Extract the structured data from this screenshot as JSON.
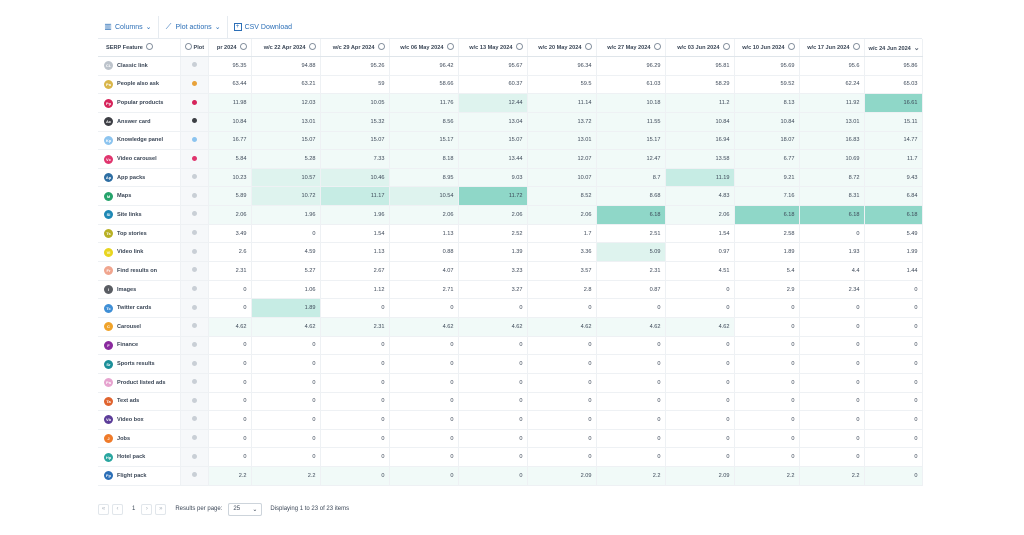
{
  "toolbar": {
    "columns_label": "Columns",
    "plot_actions_label": "Plot actions",
    "csv_label": "CSV Download"
  },
  "table": {
    "feature_header": "SERP Feature",
    "plot_header": "Plot",
    "date_headers": [
      "pr 2024",
      "w/c 22 Apr 2024",
      "w/c 29 Apr 2024",
      "w/c 06 May 2024",
      "w/c 13 May 2024",
      "w/c 20 May 2024",
      "w/c 27 May 2024",
      "w/c 03 Jun 2024",
      "w/c 10 Jun 2024",
      "w/c 17 Jun 2024",
      "w/c 24 Jun 2024"
    ],
    "rows": [
      {
        "name": "Classic link",
        "badge": "CL",
        "badge_color": "#bcc3cb",
        "dot_color": "#c9cfd6",
        "values": [
          "95.35",
          "94.88",
          "95.26",
          "96.42",
          "95.67",
          "96.34",
          "96.29",
          "95.81",
          "95.69",
          "95.6",
          "95.86"
        ],
        "heat": [
          0,
          0,
          0,
          0,
          0,
          0,
          0,
          0,
          0,
          0,
          0
        ]
      },
      {
        "name": "People also ask",
        "badge": "Pa",
        "badge_color": "#d9b64a",
        "dot_color": "#e8a23a",
        "values": [
          "63.44",
          "63.21",
          "59",
          "58.66",
          "60.37",
          "59.5",
          "61.03",
          "58.29",
          "59.52",
          "62.24",
          "65.03"
        ],
        "heat": [
          0,
          0,
          0,
          0,
          0,
          0,
          0,
          0,
          0,
          0,
          0
        ]
      },
      {
        "name": "Popular products",
        "badge": "Pp",
        "badge_color": "#d6245b",
        "dot_color": "#d6245b",
        "values": [
          "11.98",
          "12.03",
          "10.05",
          "11.76",
          "12.44",
          "11.14",
          "10.18",
          "11.2",
          "8.13",
          "11.92",
          "16.61"
        ],
        "heat": [
          1,
          1,
          1,
          1,
          2,
          1,
          1,
          1,
          1,
          1,
          4
        ]
      },
      {
        "name": "Answer card",
        "badge": "Ac",
        "badge_color": "#3d3f45",
        "dot_color": "#3d3f45",
        "values": [
          "10.84",
          "13.01",
          "15.32",
          "8.56",
          "13.04",
          "13.72",
          "11.55",
          "10.84",
          "10.84",
          "13.01",
          "15.11"
        ],
        "heat": [
          1,
          1,
          1,
          1,
          1,
          1,
          1,
          1,
          1,
          1,
          1
        ]
      },
      {
        "name": "Knowledge panel",
        "badge": "Kp",
        "badge_color": "#8cc4ef",
        "dot_color": "#8cc4ef",
        "values": [
          "16.77",
          "15.07",
          "15.07",
          "15.17",
          "15.07",
          "13.01",
          "15.17",
          "16.94",
          "18.07",
          "16.83",
          "14.77"
        ],
        "heat": [
          1,
          1,
          1,
          1,
          1,
          1,
          1,
          1,
          1,
          1,
          1
        ]
      },
      {
        "name": "Video carousel",
        "badge": "Vc",
        "badge_color": "#e0356e",
        "dot_color": "#e0356e",
        "values": [
          "5.84",
          "5.28",
          "7.33",
          "8.18",
          "13.44",
          "12.07",
          "12.47",
          "13.58",
          "6.77",
          "10.69",
          "11.7"
        ],
        "heat": [
          1,
          1,
          1,
          1,
          1,
          1,
          1,
          1,
          1,
          1,
          1
        ]
      },
      {
        "name": "App packs",
        "badge": "Ap",
        "badge_color": "#2e6ea3",
        "dot_color": "#c9cfd6",
        "values": [
          "10.23",
          "10.57",
          "10.46",
          "8.95",
          "9.03",
          "10.07",
          "8.7",
          "11.19",
          "9.21",
          "8.72",
          "9.43"
        ],
        "heat": [
          1,
          2,
          2,
          1,
          1,
          1,
          1,
          3,
          1,
          1,
          1
        ]
      },
      {
        "name": "Maps",
        "badge": "M",
        "badge_color": "#26a36b",
        "dot_color": "#c9cfd6",
        "values": [
          "5.89",
          "10.72",
          "11.17",
          "10.54",
          "11.72",
          "8.52",
          "8.68",
          "4.83",
          "7.16",
          "8.31",
          "6.84"
        ],
        "heat": [
          1,
          2,
          3,
          2,
          4,
          1,
          1,
          1,
          1,
          1,
          1
        ]
      },
      {
        "name": "Site links",
        "badge": "Sl",
        "badge_color": "#1e88b5",
        "dot_color": "#c9cfd6",
        "values": [
          "2.06",
          "1.96",
          "1.96",
          "2.06",
          "2.06",
          "2.06",
          "6.18",
          "2.06",
          "6.18",
          "6.18",
          "6.18"
        ],
        "heat": [
          1,
          1,
          1,
          1,
          1,
          1,
          4,
          1,
          4,
          4,
          4
        ]
      },
      {
        "name": "Top stories",
        "badge": "Ts",
        "badge_color": "#b8b024",
        "dot_color": "#c9cfd6",
        "values": [
          "3.49",
          "0",
          "1.54",
          "1.13",
          "2.52",
          "1.7",
          "2.51",
          "1.54",
          "2.58",
          "0",
          "5.49"
        ],
        "heat": [
          0,
          0,
          0,
          0,
          0,
          0,
          0,
          0,
          0,
          0,
          0
        ]
      },
      {
        "name": "Video link",
        "badge": "Vl",
        "badge_color": "#e8d51f",
        "dot_color": "#c9cfd6",
        "values": [
          "2.6",
          "4.59",
          "1.13",
          "0.88",
          "1.39",
          "3.36",
          "5.09",
          "0.97",
          "1.89",
          "1.93",
          "1.99"
        ],
        "heat": [
          0,
          0,
          0,
          0,
          0,
          0,
          2,
          0,
          0,
          0,
          0
        ]
      },
      {
        "name": "Find results on",
        "badge": "Fr",
        "badge_color": "#f0a58e",
        "dot_color": "#c9cfd6",
        "values": [
          "2.31",
          "5.27",
          "2.67",
          "4.07",
          "3.23",
          "3.57",
          "2.31",
          "4.51",
          "5.4",
          "4.4",
          "1.44"
        ],
        "heat": [
          0,
          0,
          0,
          0,
          0,
          0,
          0,
          0,
          0,
          0,
          0
        ]
      },
      {
        "name": "Images",
        "badge": "I",
        "badge_color": "#5a5d63",
        "dot_color": "#c9cfd6",
        "values": [
          "0",
          "1.06",
          "1.12",
          "2.71",
          "3.27",
          "2.8",
          "0.87",
          "0",
          "2.9",
          "2.34",
          "0"
        ],
        "heat": [
          0,
          0,
          0,
          0,
          0,
          0,
          0,
          0,
          0,
          0,
          0
        ]
      },
      {
        "name": "Twitter cards",
        "badge": "Tc",
        "badge_color": "#3f8fd6",
        "dot_color": "#c9cfd6",
        "values": [
          "0",
          "1.89",
          "0",
          "0",
          "0",
          "0",
          "0",
          "0",
          "0",
          "0",
          "0"
        ],
        "heat": [
          0,
          3,
          0,
          0,
          0,
          0,
          0,
          0,
          0,
          0,
          0
        ]
      },
      {
        "name": "Carousel",
        "badge": "C",
        "badge_color": "#f0a32a",
        "dot_color": "#c9cfd6",
        "values": [
          "4.62",
          "4.62",
          "2.31",
          "4.62",
          "4.62",
          "4.62",
          "4.62",
          "4.62",
          "0",
          "0",
          "0"
        ],
        "heat": [
          1,
          1,
          1,
          1,
          1,
          1,
          1,
          1,
          0,
          0,
          0
        ]
      },
      {
        "name": "Finance",
        "badge": "F",
        "badge_color": "#8a2a9e",
        "dot_color": "#c9cfd6",
        "values": [
          "0",
          "0",
          "0",
          "0",
          "0",
          "0",
          "0",
          "0",
          "0",
          "0",
          "0"
        ],
        "heat": [
          0,
          0,
          0,
          0,
          0,
          0,
          0,
          0,
          0,
          0,
          0
        ]
      },
      {
        "name": "Sports results",
        "badge": "Sr",
        "badge_color": "#1c8f99",
        "dot_color": "#c9cfd6",
        "values": [
          "0",
          "0",
          "0",
          "0",
          "0",
          "0",
          "0",
          "0",
          "0",
          "0",
          "0"
        ],
        "heat": [
          0,
          0,
          0,
          0,
          0,
          0,
          0,
          0,
          0,
          0,
          0
        ]
      },
      {
        "name": "Product listed ads",
        "badge": "Pa",
        "badge_color": "#e6a3cf",
        "dot_color": "#c9cfd6",
        "values": [
          "0",
          "0",
          "0",
          "0",
          "0",
          "0",
          "0",
          "0",
          "0",
          "0",
          "0"
        ],
        "heat": [
          0,
          0,
          0,
          0,
          0,
          0,
          0,
          0,
          0,
          0,
          0
        ]
      },
      {
        "name": "Text ads",
        "badge": "Ta",
        "badge_color": "#e0642f",
        "dot_color": "#c9cfd6",
        "values": [
          "0",
          "0",
          "0",
          "0",
          "0",
          "0",
          "0",
          "0",
          "0",
          "0",
          "0"
        ],
        "heat": [
          0,
          0,
          0,
          0,
          0,
          0,
          0,
          0,
          0,
          0,
          0
        ]
      },
      {
        "name": "Video box",
        "badge": "Vb",
        "badge_color": "#5c3d99",
        "dot_color": "#c9cfd6",
        "values": [
          "0",
          "0",
          "0",
          "0",
          "0",
          "0",
          "0",
          "0",
          "0",
          "0",
          "0"
        ],
        "heat": [
          0,
          0,
          0,
          0,
          0,
          0,
          0,
          0,
          0,
          0,
          0
        ]
      },
      {
        "name": "Jobs",
        "badge": "J",
        "badge_color": "#ef7b2a",
        "dot_color": "#c9cfd6",
        "values": [
          "0",
          "0",
          "0",
          "0",
          "0",
          "0",
          "0",
          "0",
          "0",
          "0",
          "0"
        ],
        "heat": [
          0,
          0,
          0,
          0,
          0,
          0,
          0,
          0,
          0,
          0,
          0
        ]
      },
      {
        "name": "Hotel pack",
        "badge": "Hp",
        "badge_color": "#2aa6a0",
        "dot_color": "#c9cfd6",
        "values": [
          "0",
          "0",
          "0",
          "0",
          "0",
          "0",
          "0",
          "0",
          "0",
          "0",
          "0"
        ],
        "heat": [
          0,
          0,
          0,
          0,
          0,
          0,
          0,
          0,
          0,
          0,
          0
        ]
      },
      {
        "name": "Flight pack",
        "badge": "Fp",
        "badge_color": "#2c6fb7",
        "dot_color": "#c9cfd6",
        "values": [
          "2.2",
          "2.2",
          "0",
          "0",
          "0",
          "2.09",
          "2.2",
          "2.09",
          "2.2",
          "2.2",
          "0"
        ],
        "heat": [
          1,
          1,
          1,
          1,
          1,
          1,
          1,
          1,
          1,
          1,
          1
        ]
      }
    ]
  },
  "footer": {
    "prev_first": "«",
    "prev": "‹",
    "page": "1",
    "next": "›",
    "last": "»",
    "results_per_page_label": "Results per page:",
    "results_per_page_value": "25",
    "displaying": "Displaying 1 to 23 of 23 items"
  }
}
